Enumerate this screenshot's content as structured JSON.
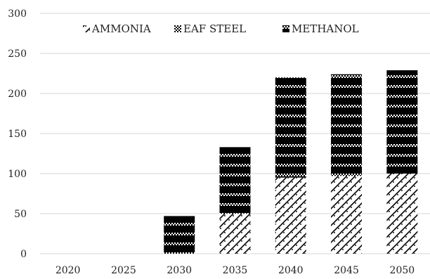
{
  "chart_data": {
    "type": "bar",
    "stacked": true,
    "categories": [
      "2020",
      "2025",
      "2030",
      "2035",
      "2040",
      "2045",
      "2050"
    ],
    "series": [
      {
        "name": "AMMONIA",
        "values": [
          0,
          0,
          0,
          50,
          95,
          97,
          100
        ],
        "pattern": "diagonal-lattice"
      },
      {
        "name": "EAF STEEL",
        "values": [
          0,
          0,
          0,
          0,
          0,
          0,
          0
        ],
        "pattern": "checker"
      },
      {
        "name": "METHANOL",
        "values": [
          0,
          0,
          47,
          83,
          125,
          127,
          129
        ],
        "pattern": "black-with-checker-bands"
      }
    ],
    "ylim": [
      0,
      300
    ],
    "yticks": [
      0,
      50,
      100,
      150,
      200,
      250,
      300
    ],
    "grid": true,
    "legend_position": "top-center",
    "title": "",
    "xlabel": "",
    "ylabel": "",
    "colors": {
      "grid": "#d4d4d4",
      "ink": "#000000",
      "text": "#222222"
    }
  }
}
